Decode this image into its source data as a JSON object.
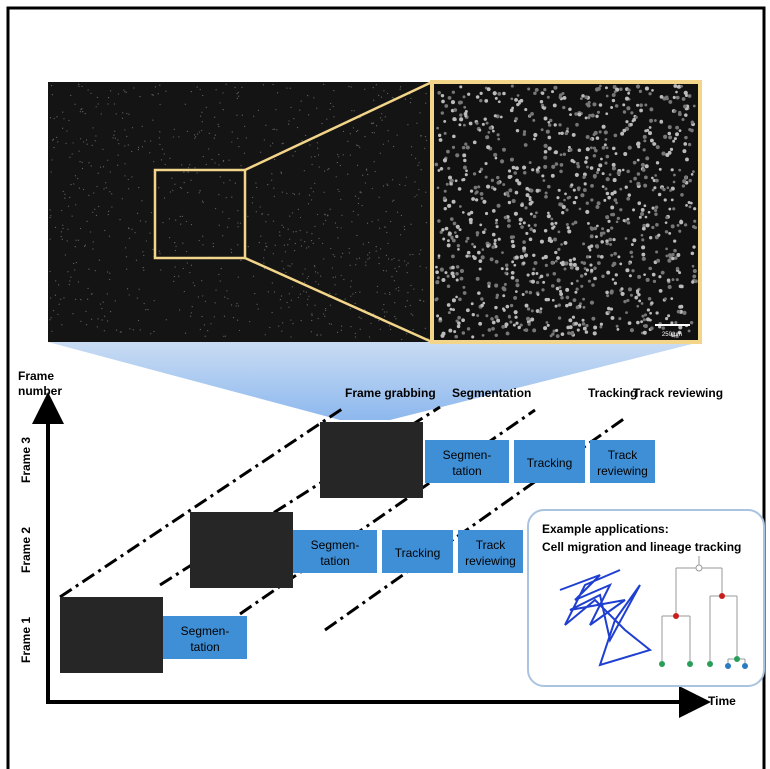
{
  "y_label": [
    "Frame",
    "number"
  ],
  "x_label": "Time",
  "stages": [
    "Frame grabbing",
    "Segmentation",
    "Tracking",
    "Track reviewing"
  ],
  "scale_bar": "250 µm",
  "frames": [
    {
      "label": "Frame 1",
      "boxes": [
        [
          "Segmen-",
          "tation"
        ]
      ]
    },
    {
      "label": "Frame 2",
      "boxes": [
        [
          "Segmen-",
          "tation"
        ],
        [
          "Tracking"
        ],
        [
          "Track",
          "reviewing"
        ]
      ]
    },
    {
      "label": "Frame 3",
      "boxes": [
        [
          "Segmen-",
          "tation"
        ],
        [
          "Tracking"
        ],
        [
          "Track",
          "reviewing"
        ]
      ]
    }
  ],
  "inset": {
    "title": [
      "Example applications:",
      "Cell migration and lineage tracking"
    ]
  }
}
